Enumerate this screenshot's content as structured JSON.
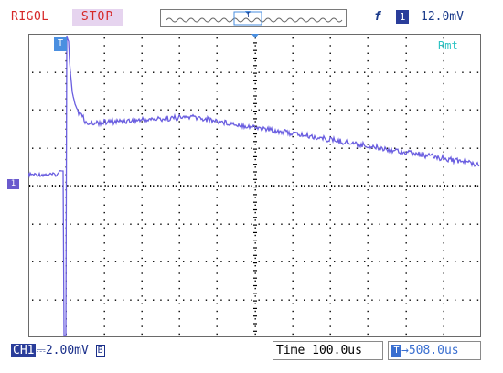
{
  "header": {
    "brand": "RIGOL",
    "run_state": "STOP",
    "trigger_edge_symbol": "f",
    "trigger_channel": "1",
    "trigger_level": "12.0mV"
  },
  "screen": {
    "trigger_position_marker": "T",
    "channel_marker": "1",
    "remote_indicator": "Rmt"
  },
  "footer": {
    "channel_name": "CH1",
    "coupling_symbol": "",
    "volts_per_div": "2.00mV",
    "bandwidth_limit": "B",
    "time_label": "Time",
    "time_per_div": "100.0us",
    "delay_badge": "T",
    "delay_value": "508.0us"
  },
  "colors": {
    "trace": "#6a5ee0",
    "grid": "#000000",
    "brand_red": "#d62828",
    "cyan": "#2fc4c4"
  }
}
